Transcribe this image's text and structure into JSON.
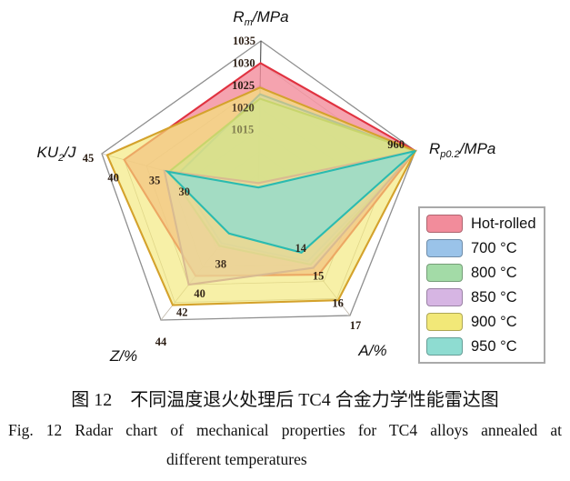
{
  "chart_data": {
    "type": "radar",
    "grid": true,
    "legend_position": "right",
    "axes": [
      {
        "key": "Rm",
        "label": "Rm/MPa",
        "label_parts": {
          "pre": "R",
          "sub": "m",
          "post": "/MPa"
        },
        "min": 1000,
        "max": 1035,
        "ticks": [
          1035,
          1030,
          1025,
          1020,
          1015
        ]
      },
      {
        "key": "Rp02",
        "label": "Rp0.2/MPa",
        "label_parts": {
          "pre": "R",
          "sub": "p0.2",
          "post": "/MPa"
        },
        "min": 925,
        "max": 960,
        "ticks": [
          960
        ]
      },
      {
        "key": "A",
        "label": "A/%",
        "label_parts": {
          "pre": "A",
          "sub": "",
          "post": "/%"
        },
        "min": 10,
        "max": 17,
        "ticks": [
          17,
          16,
          15,
          14
        ]
      },
      {
        "key": "Z",
        "label": "Z/%",
        "label_parts": {
          "pre": "Z",
          "sub": "",
          "post": "/%"
        },
        "min": 30,
        "max": 44,
        "ticks": [
          44,
          42,
          40,
          38
        ]
      },
      {
        "key": "KU2",
        "label": "KU2/J",
        "label_parts": {
          "pre": "KU",
          "sub": "2",
          "post": "/J"
        },
        "min": 10,
        "max": 45,
        "ticks": [
          45,
          40,
          35,
          30
        ]
      }
    ],
    "series": [
      {
        "name": "Hot-rolled",
        "fill": "#F28C9B",
        "line": "#E03240",
        "fill_opacity": 0.8,
        "values": {
          "Rm": 1030,
          "Rp02": 960,
          "A": 14.6,
          "Z": 39,
          "KU2": 40
        }
      },
      {
        "name": "700 °C",
        "fill": "#9AC3E9",
        "line": "#4A7CC7",
        "fill_opacity": 0.7,
        "values": {
          "Rm": 1023,
          "Rp02": 959.7,
          "A": 13.8,
          "Z": 35.3,
          "KU2": 28
        }
      },
      {
        "name": "800 °C",
        "fill": "#A3DBA7",
        "line": "#79B356",
        "fill_opacity": 0.7,
        "values": {
          "Rm": 1022,
          "Rp02": 960,
          "A": 14,
          "Z": 35.6,
          "KU2": 30
        }
      },
      {
        "name": "850 °C",
        "fill": "#D6B5E3",
        "line": "#A867C0",
        "fill_opacity": 0.7,
        "values": {
          "Rm": 1003,
          "Rp02": 959.8,
          "A": 14.2,
          "Z": 40,
          "KU2": 31
        }
      },
      {
        "name": "900 °C",
        "fill": "#F2E878",
        "line": "#D4A22C",
        "fill_opacity": 0.65,
        "values": {
          "Rm": 1024.5,
          "Rp02": 960,
          "A": 16.1,
          "Z": 42.3,
          "KU2": 43.8
        }
      },
      {
        "name": "950 °C",
        "fill": "#8EDCD1",
        "line": "#2ABBB0",
        "fill_opacity": 0.75,
        "values": {
          "Rm": 1002,
          "Rp02": 960,
          "A": 13.3,
          "Z": 34.2,
          "KU2": 30.3
        }
      }
    ]
  },
  "caption": {
    "zh": "图 12　不同温度退火处理后 TC4 合金力学性能雷达图",
    "en_line1": "Fig. 12   Radar chart of mechanical properties for TC4 alloys annealed at",
    "en_line2": "different temperatures"
  }
}
